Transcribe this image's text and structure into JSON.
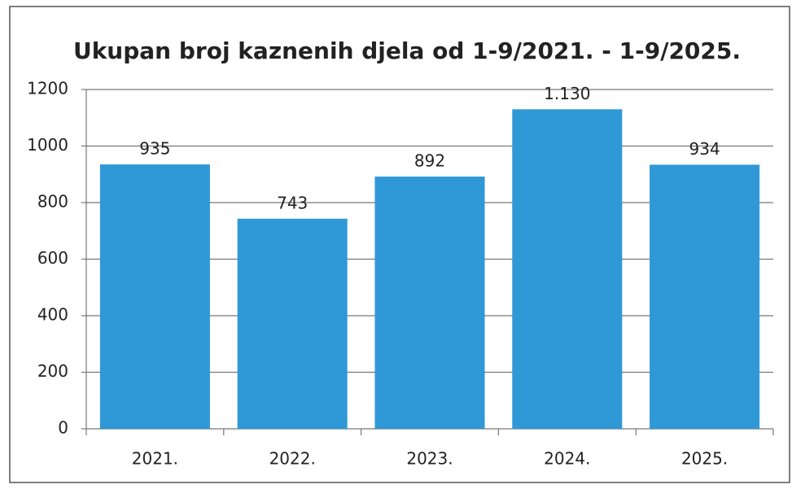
{
  "chart_data": {
    "type": "bar",
    "title": "Ukupan broj kaznenih djela od 1-9/2021. - 1-9/2025.",
    "categories": [
      "2021.",
      "2022.",
      "2023.",
      "2024.",
      "2025."
    ],
    "values": [
      935,
      743,
      892,
      1130,
      934
    ],
    "value_labels": [
      "935",
      "743",
      "892",
      "1.130",
      "934"
    ],
    "color": "#2f98d6",
    "ylim": [
      0,
      1200
    ],
    "yticks": [
      0,
      200,
      400,
      600,
      800,
      1000,
      1200
    ],
    "grid": true
  }
}
